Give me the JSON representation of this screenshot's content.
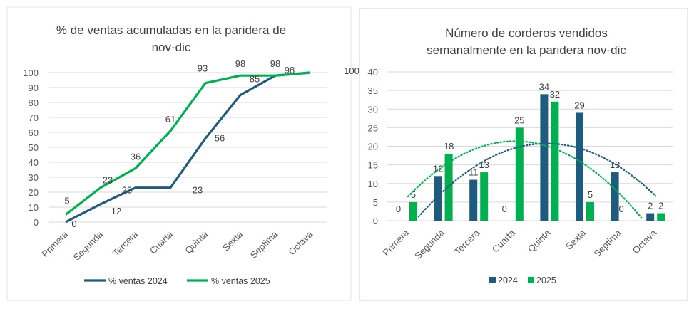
{
  "colors": {
    "series_2024": "#1f5b7d",
    "series_2025": "#00b050",
    "grid": "#d9d9d9"
  },
  "chart_data": [
    {
      "type": "line",
      "title_lines": [
        "% de ventas acumuladas en la paridera de",
        "nov-dic"
      ],
      "categories": [
        "Primera",
        "Segunda",
        "Tercera",
        "Cuarta",
        "Quinta",
        "Sexta",
        "Septima",
        "Octava"
      ],
      "ylim": [
        0,
        100
      ],
      "yticks": [
        "0",
        "10",
        "20",
        "30",
        "40",
        "50",
        "60",
        "70",
        "80",
        "90",
        "100"
      ],
      "grid": true,
      "legend_position": "bottom",
      "series": [
        {
          "name": "% ventas 2024",
          "values": [
            0,
            12,
            23,
            23,
            56,
            85,
            98,
            100
          ],
          "labels": [
            "0",
            "12",
            "23",
            "23",
            "56",
            "85",
            "98",
            "100"
          ]
        },
        {
          "name": "% ventas 2025",
          "values": [
            5,
            23,
            36,
            61,
            93,
            98,
            98,
            100
          ],
          "labels": [
            "5",
            "23",
            "36",
            "61",
            "93",
            "98",
            "98",
            "100"
          ]
        }
      ]
    },
    {
      "type": "bar",
      "title_lines": [
        "Número de corderos vendidos",
        "semanalmente en la paridera nov-dic"
      ],
      "categories": [
        "Primera",
        "Segunda",
        "Tercera",
        "Cuarta",
        "Quinta",
        "Sexta",
        "Septima",
        "Octava"
      ],
      "ylim": [
        0,
        40
      ],
      "yticks": [
        "0",
        "5",
        "10",
        "15",
        "20",
        "25",
        "30",
        "35",
        "40"
      ],
      "grid": true,
      "legend_position": "bottom",
      "trendline": "polynomial-2-dotted",
      "series": [
        {
          "name": "2024",
          "values": [
            0,
            12,
            11,
            0,
            34,
            29,
            13,
            2
          ],
          "labels": [
            "0",
            "12",
            "11",
            "0",
            "34",
            "29",
            "13",
            "2"
          ]
        },
        {
          "name": "2025",
          "values": [
            5,
            18,
            13,
            25,
            32,
            5,
            0,
            2
          ],
          "labels": [
            "5",
            "18",
            "13",
            "25",
            "32",
            "5",
            "0",
            "2"
          ]
        }
      ]
    }
  ]
}
